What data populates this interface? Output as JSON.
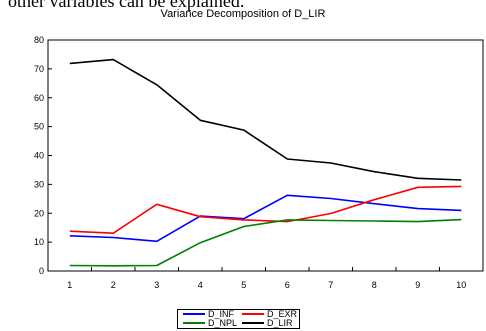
{
  "page": {
    "top_text": "other variables can be explained."
  },
  "chart_data": {
    "type": "line",
    "title": "Variance Decomposition of D_LIR",
    "xlabel": "",
    "ylabel": "",
    "x": [
      1,
      2,
      3,
      4,
      5,
      6,
      7,
      8,
      9,
      10
    ],
    "ylim": [
      0,
      80
    ],
    "yticks": [
      0,
      10,
      20,
      30,
      40,
      50,
      60,
      70,
      80
    ],
    "grid": false,
    "legend_position": "bottom",
    "series": [
      {
        "name": "D_INF",
        "color": "#0000ff",
        "values": [
          12.2,
          11.6,
          10.3,
          19.0,
          18.1,
          26.2,
          25.1,
          23.3,
          21.6,
          21.0
        ]
      },
      {
        "name": "D_EXR",
        "color": "#ff0000",
        "values": [
          13.8,
          13.1,
          23.1,
          18.8,
          17.7,
          17.1,
          19.9,
          24.7,
          29.0,
          29.3
        ]
      },
      {
        "name": "D_NPL",
        "color": "#008000",
        "values": [
          1.9,
          1.8,
          1.9,
          9.8,
          15.4,
          17.7,
          17.5,
          17.3,
          17.1,
          17.8
        ]
      },
      {
        "name": "D_LIR",
        "color": "#000000",
        "values": [
          71.9,
          73.2,
          64.5,
          52.2,
          48.8,
          38.8,
          37.4,
          34.4,
          32.1,
          31.5
        ]
      }
    ]
  }
}
